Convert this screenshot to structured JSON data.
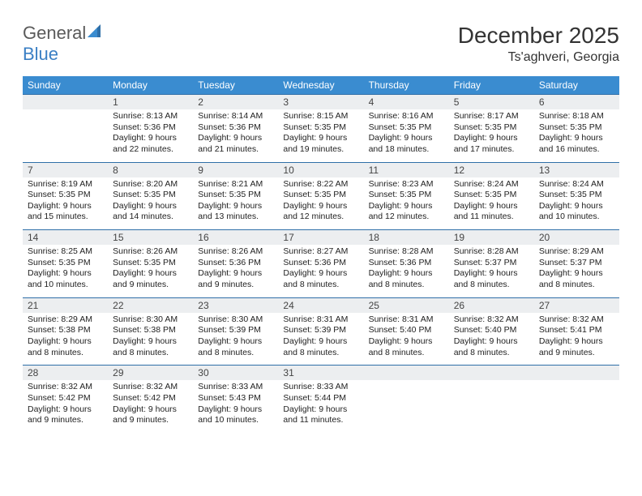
{
  "brand": {
    "part1": "General",
    "part2": "Blue"
  },
  "title": "December 2025",
  "location": "Ts'aghveri, Georgia",
  "colors": {
    "header_bg": "#3a8cd0",
    "header_text": "#ffffff",
    "daynum_bg": "#eceef0",
    "divider": "#2f6fa8",
    "logo_gray": "#5a5a5a",
    "logo_blue": "#3a7fc4"
  },
  "typography": {
    "body_font": "Arial",
    "title_size": 28,
    "dow_size": 12,
    "cell_size": 10.5
  },
  "layout": {
    "cols": 7,
    "rows": 5,
    "first_day_col": 1
  },
  "dow": [
    "Sunday",
    "Monday",
    "Tuesday",
    "Wednesday",
    "Thursday",
    "Friday",
    "Saturday"
  ],
  "weeks": [
    [
      null,
      {
        "n": "1",
        "sr": "8:13 AM",
        "ss": "5:36 PM",
        "dl": "9 hours and 22 minutes."
      },
      {
        "n": "2",
        "sr": "8:14 AM",
        "ss": "5:36 PM",
        "dl": "9 hours and 21 minutes."
      },
      {
        "n": "3",
        "sr": "8:15 AM",
        "ss": "5:35 PM",
        "dl": "9 hours and 19 minutes."
      },
      {
        "n": "4",
        "sr": "8:16 AM",
        "ss": "5:35 PM",
        "dl": "9 hours and 18 minutes."
      },
      {
        "n": "5",
        "sr": "8:17 AM",
        "ss": "5:35 PM",
        "dl": "9 hours and 17 minutes."
      },
      {
        "n": "6",
        "sr": "8:18 AM",
        "ss": "5:35 PM",
        "dl": "9 hours and 16 minutes."
      }
    ],
    [
      {
        "n": "7",
        "sr": "8:19 AM",
        "ss": "5:35 PM",
        "dl": "9 hours and 15 minutes."
      },
      {
        "n": "8",
        "sr": "8:20 AM",
        "ss": "5:35 PM",
        "dl": "9 hours and 14 minutes."
      },
      {
        "n": "9",
        "sr": "8:21 AM",
        "ss": "5:35 PM",
        "dl": "9 hours and 13 minutes."
      },
      {
        "n": "10",
        "sr": "8:22 AM",
        "ss": "5:35 PM",
        "dl": "9 hours and 12 minutes."
      },
      {
        "n": "11",
        "sr": "8:23 AM",
        "ss": "5:35 PM",
        "dl": "9 hours and 12 minutes."
      },
      {
        "n": "12",
        "sr": "8:24 AM",
        "ss": "5:35 PM",
        "dl": "9 hours and 11 minutes."
      },
      {
        "n": "13",
        "sr": "8:24 AM",
        "ss": "5:35 PM",
        "dl": "9 hours and 10 minutes."
      }
    ],
    [
      {
        "n": "14",
        "sr": "8:25 AM",
        "ss": "5:35 PM",
        "dl": "9 hours and 10 minutes."
      },
      {
        "n": "15",
        "sr": "8:26 AM",
        "ss": "5:35 PM",
        "dl": "9 hours and 9 minutes."
      },
      {
        "n": "16",
        "sr": "8:26 AM",
        "ss": "5:36 PM",
        "dl": "9 hours and 9 minutes."
      },
      {
        "n": "17",
        "sr": "8:27 AM",
        "ss": "5:36 PM",
        "dl": "9 hours and 8 minutes."
      },
      {
        "n": "18",
        "sr": "8:28 AM",
        "ss": "5:36 PM",
        "dl": "9 hours and 8 minutes."
      },
      {
        "n": "19",
        "sr": "8:28 AM",
        "ss": "5:37 PM",
        "dl": "9 hours and 8 minutes."
      },
      {
        "n": "20",
        "sr": "8:29 AM",
        "ss": "5:37 PM",
        "dl": "9 hours and 8 minutes."
      }
    ],
    [
      {
        "n": "21",
        "sr": "8:29 AM",
        "ss": "5:38 PM",
        "dl": "9 hours and 8 minutes."
      },
      {
        "n": "22",
        "sr": "8:30 AM",
        "ss": "5:38 PM",
        "dl": "9 hours and 8 minutes."
      },
      {
        "n": "23",
        "sr": "8:30 AM",
        "ss": "5:39 PM",
        "dl": "9 hours and 8 minutes."
      },
      {
        "n": "24",
        "sr": "8:31 AM",
        "ss": "5:39 PM",
        "dl": "9 hours and 8 minutes."
      },
      {
        "n": "25",
        "sr": "8:31 AM",
        "ss": "5:40 PM",
        "dl": "9 hours and 8 minutes."
      },
      {
        "n": "26",
        "sr": "8:32 AM",
        "ss": "5:40 PM",
        "dl": "9 hours and 8 minutes."
      },
      {
        "n": "27",
        "sr": "8:32 AM",
        "ss": "5:41 PM",
        "dl": "9 hours and 9 minutes."
      }
    ],
    [
      {
        "n": "28",
        "sr": "8:32 AM",
        "ss": "5:42 PM",
        "dl": "9 hours and 9 minutes."
      },
      {
        "n": "29",
        "sr": "8:32 AM",
        "ss": "5:42 PM",
        "dl": "9 hours and 9 minutes."
      },
      {
        "n": "30",
        "sr": "8:33 AM",
        "ss": "5:43 PM",
        "dl": "9 hours and 10 minutes."
      },
      {
        "n": "31",
        "sr": "8:33 AM",
        "ss": "5:44 PM",
        "dl": "9 hours and 11 minutes."
      },
      null,
      null,
      null
    ]
  ],
  "labels": {
    "sunrise": "Sunrise:",
    "sunset": "Sunset:",
    "daylight": "Daylight:"
  }
}
